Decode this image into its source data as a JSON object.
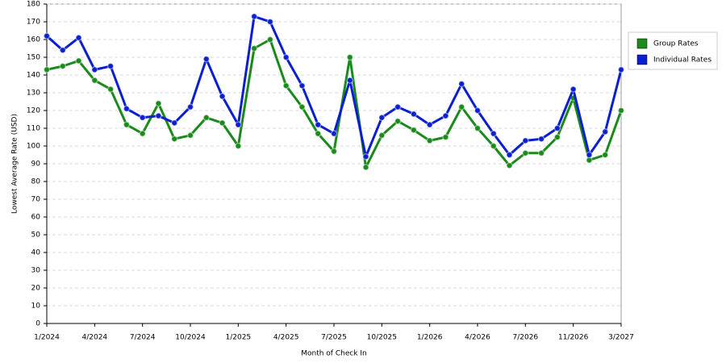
{
  "chart_data": {
    "type": "line",
    "x_label": "Month of Check In",
    "y_label": "Lowest Average Rate (USD)",
    "categories": [
      "1/2024",
      null,
      null,
      "4/2024",
      null,
      null,
      "7/2024",
      null,
      null,
      "10/2024",
      null,
      null,
      "1/2025",
      null,
      null,
      "4/2025",
      null,
      null,
      "7/2025",
      null,
      null,
      "10/2025",
      null,
      null,
      "1/2026",
      null,
      null,
      "4/2026",
      null,
      null,
      "7/2026",
      null,
      null,
      "11/2026",
      null,
      null,
      "3/2027"
    ],
    "series": [
      {
        "name": "Group Rates",
        "color": "#1a8a1a",
        "values": [
          143,
          145,
          148,
          137,
          132,
          112,
          107,
          124,
          104,
          106,
          116,
          113,
          100,
          155,
          160,
          134,
          122,
          107,
          97,
          150,
          88,
          106,
          114,
          109,
          103,
          105,
          122,
          110,
          100,
          89,
          96,
          96,
          105,
          127,
          92,
          95,
          120
        ]
      },
      {
        "name": "Individual Rates",
        "color": "#0a1fd0",
        "values": [
          162,
          154,
          161,
          143,
          145,
          121,
          116,
          117,
          113,
          122,
          149,
          128,
          112,
          173,
          170,
          150,
          134,
          112,
          107,
          137,
          94,
          116,
          122,
          118,
          112,
          117,
          135,
          120,
          107,
          95,
          103,
          104,
          110,
          132,
          95,
          108,
          143
        ]
      }
    ],
    "ylim": [
      0,
      180
    ],
    "yticks": [
      0,
      10,
      20,
      30,
      40,
      50,
      60,
      70,
      80,
      90,
      100,
      110,
      120,
      130,
      140,
      150,
      160,
      170,
      180
    ],
    "grid": true,
    "legend": "right"
  }
}
